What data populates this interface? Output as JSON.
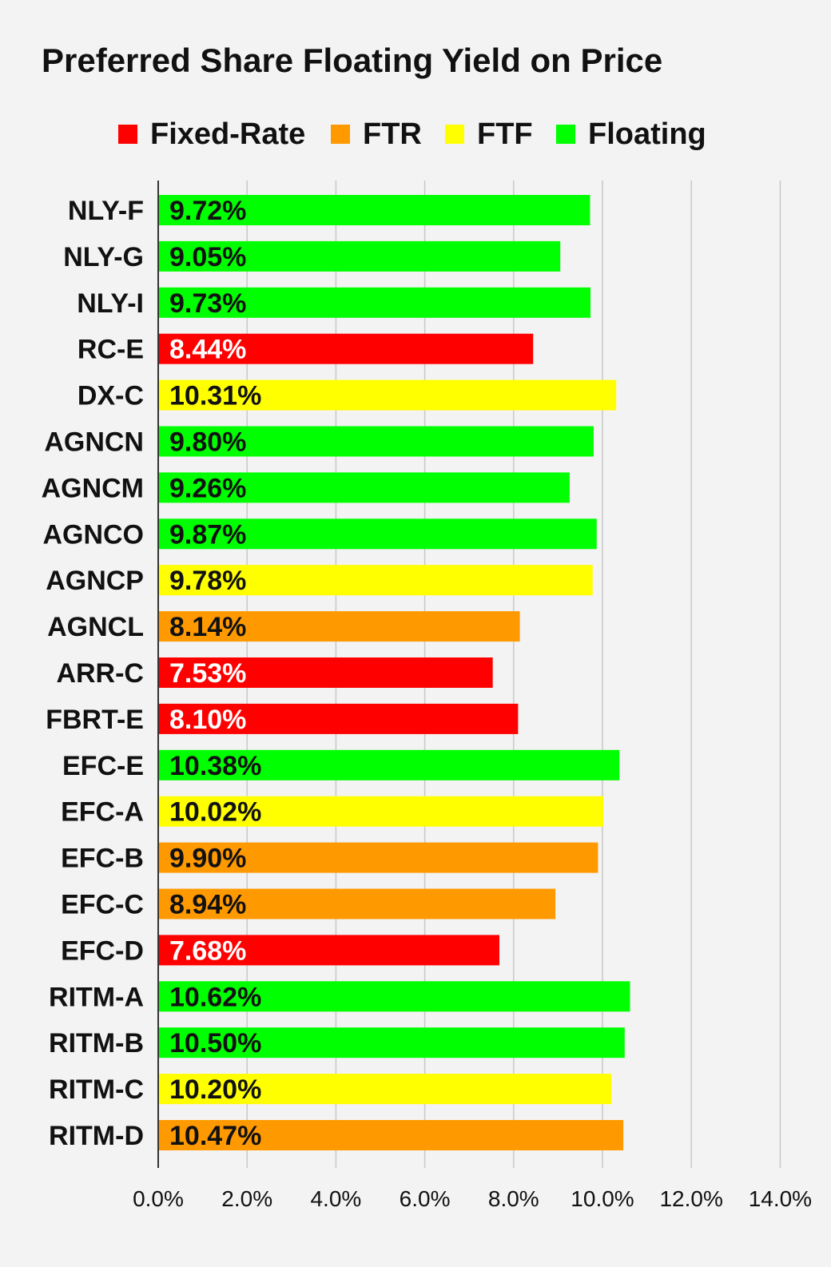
{
  "chart_data": {
    "type": "bar",
    "orientation": "horizontal",
    "title": "Preferred Share Floating Yield on Price",
    "xlabel": "",
    "ylabel": "",
    "xlim": [
      0,
      14
    ],
    "x_ticks": [
      "0.0%",
      "2.0%",
      "4.0%",
      "6.0%",
      "8.0%",
      "10.0%",
      "12.0%",
      "14.0%"
    ],
    "grid": true,
    "legend_position": "top",
    "legend": [
      {
        "name": "Fixed-Rate",
        "color": "#ff0000"
      },
      {
        "name": "FTR",
        "color": "#ff9900"
      },
      {
        "name": "FTF",
        "color": "#ffff00"
      },
      {
        "name": "Floating",
        "color": "#00ff00"
      }
    ],
    "bars": [
      {
        "category": "NLY-F",
        "value": 9.72,
        "label": "9.72%",
        "type": "Floating"
      },
      {
        "category": "NLY-G",
        "value": 9.05,
        "label": "9.05%",
        "type": "Floating"
      },
      {
        "category": "NLY-I",
        "value": 9.73,
        "label": "9.73%",
        "type": "Floating"
      },
      {
        "category": "RC-E",
        "value": 8.44,
        "label": "8.44%",
        "type": "Fixed-Rate"
      },
      {
        "category": "DX-C",
        "value": 10.31,
        "label": "10.31%",
        "type": "FTF"
      },
      {
        "category": "AGNCN",
        "value": 9.8,
        "label": "9.80%",
        "type": "Floating"
      },
      {
        "category": "AGNCM",
        "value": 9.26,
        "label": "9.26%",
        "type": "Floating"
      },
      {
        "category": "AGNCO",
        "value": 9.87,
        "label": "9.87%",
        "type": "Floating"
      },
      {
        "category": "AGNCP",
        "value": 9.78,
        "label": "9.78%",
        "type": "FTF"
      },
      {
        "category": "AGNCL",
        "value": 8.14,
        "label": "8.14%",
        "type": "FTR"
      },
      {
        "category": "ARR-C",
        "value": 7.53,
        "label": "7.53%",
        "type": "Fixed-Rate"
      },
      {
        "category": "FBRT-E",
        "value": 8.1,
        "label": "8.10%",
        "type": "Fixed-Rate"
      },
      {
        "category": "EFC-E",
        "value": 10.38,
        "label": "10.38%",
        "type": "Floating"
      },
      {
        "category": "EFC-A",
        "value": 10.02,
        "label": "10.02%",
        "type": "FTF"
      },
      {
        "category": "EFC-B",
        "value": 9.9,
        "label": "9.90%",
        "type": "FTR"
      },
      {
        "category": "EFC-C",
        "value": 8.94,
        "label": "8.94%",
        "type": "FTR"
      },
      {
        "category": "EFC-D",
        "value": 7.68,
        "label": "7.68%",
        "type": "Fixed-Rate"
      },
      {
        "category": "RITM-A",
        "value": 10.62,
        "label": "10.62%",
        "type": "Floating"
      },
      {
        "category": "RITM-B",
        "value": 10.5,
        "label": "10.50%",
        "type": "Floating"
      },
      {
        "category": "RITM-C",
        "value": 10.2,
        "label": "10.20%",
        "type": "FTF"
      },
      {
        "category": "RITM-D",
        "value": 10.47,
        "label": "10.47%",
        "type": "FTR"
      }
    ]
  }
}
